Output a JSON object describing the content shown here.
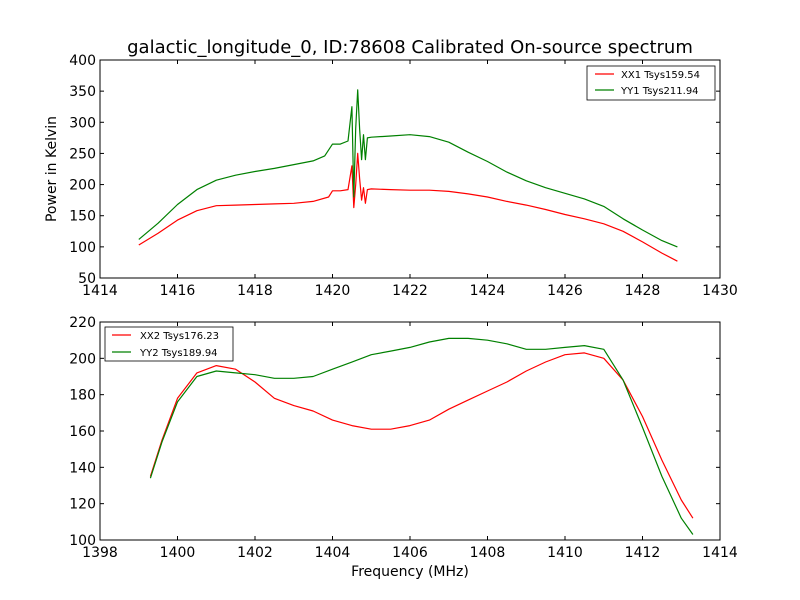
{
  "figure": {
    "title": "galactic_longitude_0, ID:78608 Calibrated On-source spectrum"
  },
  "chart_data": [
    {
      "type": "line",
      "id": "top",
      "title": "galactic_longitude_0, ID:78608 Calibrated On-source spectrum",
      "xlabel": "",
      "ylabel": "Power in Kelvin",
      "xlim": [
        1414,
        1430
      ],
      "ylim": [
        50,
        400
      ],
      "xticks": [
        "1414",
        "1416",
        "1418",
        "1420",
        "1422",
        "1424",
        "1426",
        "1428",
        "1430"
      ],
      "yticks": [
        "50",
        "100",
        "150",
        "200",
        "250",
        "300",
        "350",
        "400"
      ],
      "grid": false,
      "legend_position": "top-right",
      "series": [
        {
          "name": "XX1 Tsys159.54",
          "color": "#ff0000",
          "x": [
            1415.0,
            1415.5,
            1416.0,
            1416.5,
            1417.0,
            1417.5,
            1418.0,
            1418.5,
            1419.0,
            1419.5,
            1419.9,
            1420.0,
            1420.2,
            1420.4,
            1420.5,
            1420.55,
            1420.6,
            1420.65,
            1420.7,
            1420.75,
            1420.8,
            1420.85,
            1420.9,
            1421.0,
            1421.5,
            1422.0,
            1422.5,
            1423.0,
            1423.5,
            1424.0,
            1424.5,
            1425.0,
            1425.5,
            1426.0,
            1426.5,
            1427.0,
            1427.5,
            1428.0,
            1428.5,
            1428.9
          ],
          "y": [
            103,
            122,
            143,
            158,
            166,
            167,
            168,
            169,
            170,
            173,
            180,
            190,
            190,
            192,
            230,
            163,
            200,
            250,
            210,
            175,
            195,
            170,
            192,
            193,
            192,
            191,
            191,
            189,
            185,
            180,
            173,
            167,
            160,
            152,
            145,
            137,
            125,
            108,
            90,
            77
          ]
        },
        {
          "name": "YY1 Tsys211.94",
          "color": "#008000",
          "x": [
            1415.0,
            1415.5,
            1416.0,
            1416.5,
            1417.0,
            1417.5,
            1418.0,
            1418.5,
            1419.0,
            1419.5,
            1419.8,
            1420.0,
            1420.2,
            1420.4,
            1420.5,
            1420.55,
            1420.6,
            1420.65,
            1420.7,
            1420.75,
            1420.8,
            1420.85,
            1420.9,
            1421.0,
            1421.5,
            1422.0,
            1422.5,
            1423.0,
            1423.5,
            1424.0,
            1424.5,
            1425.0,
            1425.5,
            1426.0,
            1426.5,
            1427.0,
            1427.5,
            1428.0,
            1428.5,
            1428.9
          ],
          "y": [
            112,
            138,
            168,
            192,
            207,
            215,
            221,
            226,
            232,
            238,
            246,
            265,
            265,
            270,
            325,
            180,
            290,
            352,
            290,
            240,
            280,
            240,
            275,
            276,
            278,
            280,
            277,
            268,
            252,
            237,
            220,
            206,
            195,
            186,
            177,
            165,
            145,
            127,
            110,
            100
          ]
        }
      ]
    },
    {
      "type": "line",
      "id": "bottom",
      "title": "",
      "xlabel": "Frequency (MHz)",
      "ylabel": "",
      "xlim": [
        1398,
        1414
      ],
      "ylim": [
        100,
        220
      ],
      "xticks": [
        "1398",
        "1400",
        "1402",
        "1404",
        "1406",
        "1408",
        "1410",
        "1412",
        "1414"
      ],
      "yticks": [
        "100",
        "120",
        "140",
        "160",
        "180",
        "200",
        "220"
      ],
      "grid": false,
      "legend_position": "top-left",
      "series": [
        {
          "name": "XX2 Tsys176.23",
          "color": "#ff0000",
          "x": [
            1399.3,
            1399.6,
            1400.0,
            1400.5,
            1401.0,
            1401.5,
            1402.0,
            1402.5,
            1403.0,
            1403.5,
            1404.0,
            1404.5,
            1405.0,
            1405.5,
            1406.0,
            1406.5,
            1407.0,
            1407.5,
            1408.0,
            1408.5,
            1409.0,
            1409.5,
            1410.0,
            1410.5,
            1411.0,
            1411.5,
            1412.0,
            1412.5,
            1413.0,
            1413.3
          ],
          "y": [
            135,
            155,
            178,
            192,
            196,
            194,
            187,
            178,
            174,
            171,
            166,
            163,
            161,
            161,
            163,
            166,
            172,
            177,
            182,
            187,
            193,
            198,
            202,
            203,
            200,
            188,
            168,
            144,
            122,
            112
          ]
        },
        {
          "name": "YY2 Tsys189.94",
          "color": "#008000",
          "x": [
            1399.3,
            1399.6,
            1400.0,
            1400.5,
            1401.0,
            1401.5,
            1402.0,
            1402.5,
            1403.0,
            1403.5,
            1404.0,
            1404.5,
            1405.0,
            1405.5,
            1406.0,
            1406.5,
            1407.0,
            1407.5,
            1408.0,
            1408.5,
            1409.0,
            1409.5,
            1410.0,
            1410.5,
            1411.0,
            1411.5,
            1412.0,
            1412.5,
            1413.0,
            1413.3
          ],
          "y": [
            134,
            154,
            176,
            190,
            193,
            192,
            191,
            189,
            189,
            190,
            194,
            198,
            202,
            204,
            206,
            209,
            211,
            211,
            210,
            208,
            205,
            205,
            206,
            207,
            205,
            188,
            162,
            135,
            112,
            103
          ]
        }
      ]
    }
  ]
}
